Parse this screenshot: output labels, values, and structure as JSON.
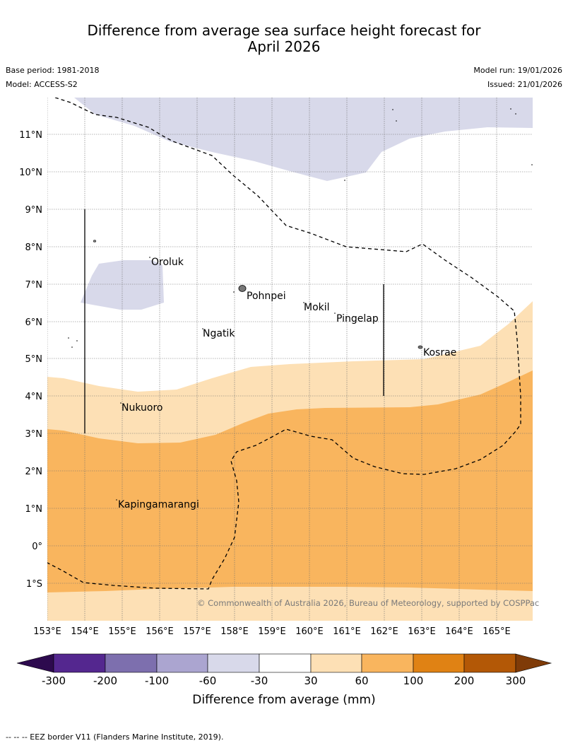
{
  "title_line1": "Difference from average sea surface height forecast for",
  "title_line2": "April 2026",
  "base_period": "Base period: 1981-2018",
  "model": "Model: ACCESS-S2",
  "model_run": "Model run: 19/01/2026",
  "issued": "Issued: 21/01/2026",
  "lat_labels": [
    "11°N",
    "10°N",
    "9°N",
    "8°N",
    "7°N",
    "6°N",
    "5°N",
    "4°N",
    "3°N",
    "2°N",
    "1°N",
    "0°",
    "1°S"
  ],
  "lon_labels": [
    "153°E",
    "154°E",
    "155°E",
    "156°E",
    "157°E",
    "158°E",
    "159°E",
    "160°E",
    "161°E",
    "162°E",
    "163°E",
    "164°E",
    "165°E"
  ],
  "places": {
    "oroluk": "Oroluk",
    "pohnpei": "Pohnpei",
    "mokil": "Mokil",
    "pingelap": "Pingelap",
    "ngatik": "Ngatik",
    "kosrae": "Kosrae",
    "nukuoro": "Nukuoro",
    "kapingamarangi": "Kapingamarangi"
  },
  "copyright": "© Commonwealth of Australia 2026, Bureau of Meteorology, supported by COSPPac",
  "colorbar": {
    "title": "Difference from average (mm)",
    "ticks": [
      "-300",
      "-200",
      "-100",
      "-60",
      "-30",
      "30",
      "60",
      "100",
      "200",
      "300"
    ],
    "colors": {
      "below": "#2d0a4e",
      "b1": "#54278f",
      "b2": "#7d6fae",
      "b3": "#aba5d0",
      "b4": "#d8d9ea",
      "b5": "#ffffff",
      "b6": "#fde0b5",
      "b7": "#f9b55e",
      "b8": "#e08214",
      "b9": "#b35806",
      "above": "#7f3b08"
    }
  },
  "footer": "--  --  -- EEZ border V11 (Flanders Marine Institute, 2019)."
}
